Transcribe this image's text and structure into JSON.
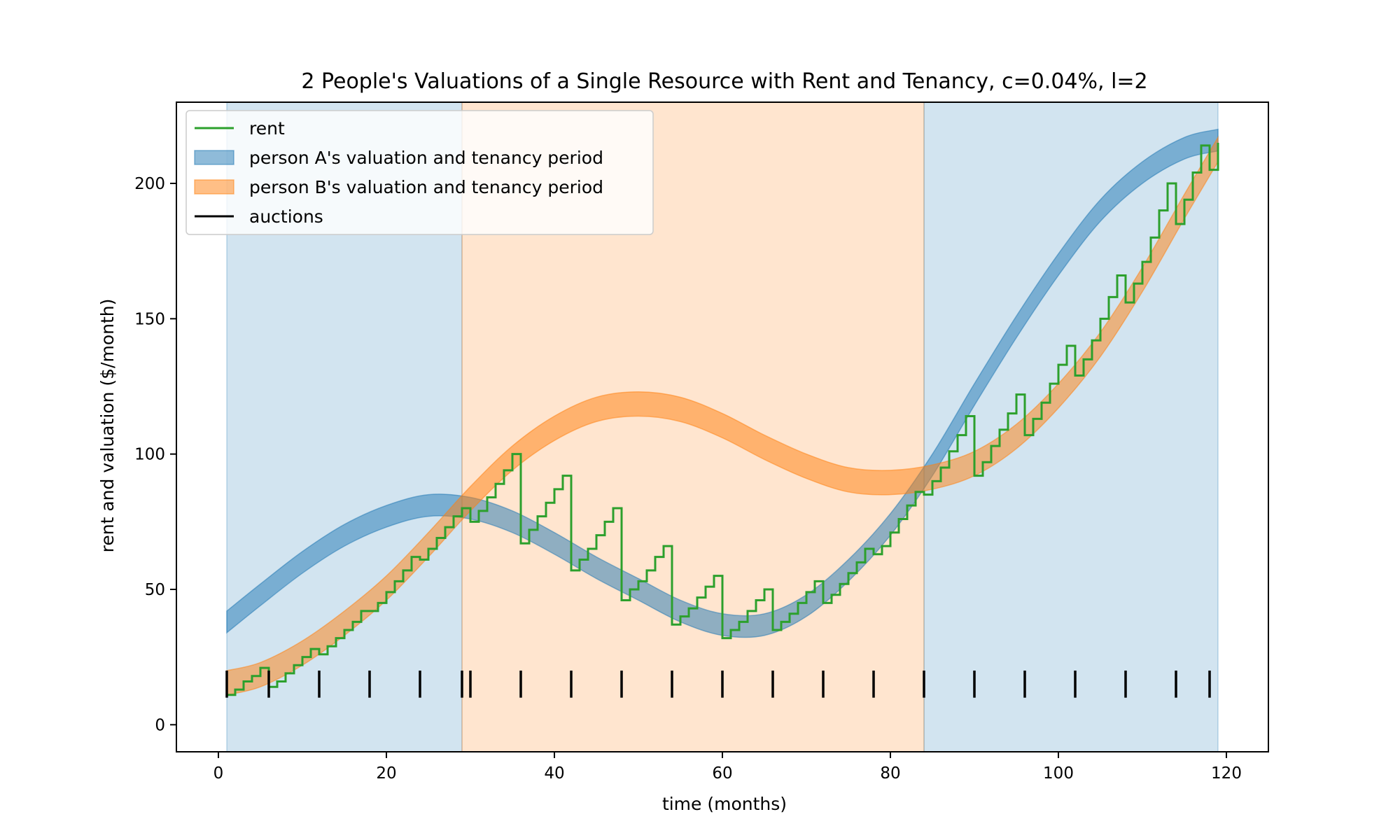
{
  "chart_data": {
    "type": "area",
    "title": "2 People's Valuations of a Single Resource with Rent and Tenancy, c=0.04%, l=2",
    "xlabel": "time (months)",
    "ylabel": "rent and valuation ($/month)",
    "xlim": [
      -5,
      125
    ],
    "ylim": [
      -10,
      230
    ],
    "x_ticks": [
      0,
      20,
      40,
      60,
      80,
      100,
      120
    ],
    "y_ticks": [
      0,
      50,
      100,
      150,
      200
    ],
    "grid": false,
    "legend_position": "upper-left",
    "colors": {
      "personA": "#1f77b4",
      "personB": "#ff7f0e",
      "rent": "#2ca02c",
      "auctions": "#000000"
    },
    "legend": [
      {
        "key": "rent",
        "label": "rent"
      },
      {
        "key": "personA",
        "label": "person A's valuation and tenancy period"
      },
      {
        "key": "personB",
        "label": "person B's valuation and tenancy period"
      },
      {
        "key": "auctions",
        "label": "auctions"
      }
    ],
    "tenancy_periods": [
      {
        "person": "A",
        "start": 1,
        "end": 29
      },
      {
        "person": "B",
        "start": 29,
        "end": 84
      },
      {
        "person": "A",
        "start": 84,
        "end": 119
      }
    ],
    "valuation_bands": {
      "A": {
        "x": [
          1,
          5,
          10,
          15,
          20,
          25,
          30,
          35,
          40,
          45,
          50,
          55,
          60,
          65,
          70,
          75,
          80,
          85,
          90,
          95,
          100,
          105,
          110,
          115,
          119
        ],
        "lower": [
          34,
          44,
          56,
          66,
          73,
          77,
          76,
          71,
          63,
          54,
          46,
          38,
          33,
          33,
          40,
          53,
          70,
          92,
          118,
          143,
          166,
          186,
          200,
          209,
          212
        ],
        "upper": [
          42,
          52,
          64,
          74,
          81,
          85,
          84,
          79,
          71,
          62,
          54,
          46,
          41,
          41,
          48,
          61,
          78,
          100,
          126,
          151,
          174,
          194,
          208,
          217,
          220
        ]
      },
      "B": {
        "x": [
          1,
          5,
          10,
          15,
          20,
          25,
          30,
          35,
          40,
          45,
          50,
          55,
          60,
          65,
          70,
          75,
          80,
          85,
          90,
          95,
          100,
          105,
          110,
          115,
          119
        ],
        "lower": [
          11,
          14,
          22,
          33,
          46,
          62,
          79,
          94,
          105,
          112,
          114,
          112,
          106,
          98,
          91,
          86,
          85,
          87,
          92,
          102,
          117,
          136,
          160,
          187,
          208
        ],
        "upper": [
          20,
          23,
          31,
          42,
          55,
          71,
          88,
          103,
          114,
          121,
          123,
          121,
          115,
          107,
          100,
          95,
          94,
          96,
          101,
          111,
          126,
          145,
          169,
          196,
          217
        ]
      }
    },
    "auctions": [
      1,
      6,
      12,
      18,
      24,
      29,
      30,
      36,
      42,
      48,
      54,
      60,
      66,
      72,
      78,
      84,
      90,
      96,
      102,
      108,
      114,
      118
    ],
    "auction_marker_range": [
      10,
      20
    ],
    "rent": [
      [
        1,
        11
      ],
      [
        2,
        13
      ],
      [
        3,
        16
      ],
      [
        4,
        18
      ],
      [
        5,
        21
      ],
      [
        6,
        14
      ],
      [
        7,
        16
      ],
      [
        8,
        19
      ],
      [
        9,
        22
      ],
      [
        10,
        25
      ],
      [
        11,
        28
      ],
      [
        12,
        26
      ],
      [
        13,
        29
      ],
      [
        14,
        32
      ],
      [
        15,
        35
      ],
      [
        16,
        38
      ],
      [
        17,
        42
      ],
      [
        18,
        42
      ],
      [
        19,
        45
      ],
      [
        20,
        49
      ],
      [
        21,
        53
      ],
      [
        22,
        57
      ],
      [
        23,
        62
      ],
      [
        24,
        61
      ],
      [
        25,
        65
      ],
      [
        26,
        69
      ],
      [
        27,
        73
      ],
      [
        28,
        77
      ],
      [
        29,
        80
      ],
      [
        30,
        75
      ],
      [
        31,
        79
      ],
      [
        32,
        84
      ],
      [
        33,
        89
      ],
      [
        34,
        94
      ],
      [
        35,
        100
      ],
      [
        36,
        67
      ],
      [
        37,
        72
      ],
      [
        38,
        77
      ],
      [
        39,
        82
      ],
      [
        40,
        87
      ],
      [
        41,
        92
      ],
      [
        42,
        57
      ],
      [
        43,
        61
      ],
      [
        44,
        65
      ],
      [
        45,
        70
      ],
      [
        46,
        75
      ],
      [
        47,
        80
      ],
      [
        48,
        46
      ],
      [
        49,
        50
      ],
      [
        50,
        53
      ],
      [
        51,
        57
      ],
      [
        52,
        62
      ],
      [
        53,
        66
      ],
      [
        54,
        37
      ],
      [
        55,
        40
      ],
      [
        56,
        43
      ],
      [
        57,
        47
      ],
      [
        58,
        51
      ],
      [
        59,
        55
      ],
      [
        60,
        32
      ],
      [
        61,
        35
      ],
      [
        62,
        38
      ],
      [
        63,
        42
      ],
      [
        64,
        46
      ],
      [
        65,
        50
      ],
      [
        66,
        35
      ],
      [
        67,
        38
      ],
      [
        68,
        41
      ],
      [
        69,
        45
      ],
      [
        70,
        49
      ],
      [
        71,
        53
      ],
      [
        72,
        45
      ],
      [
        73,
        48
      ],
      [
        74,
        52
      ],
      [
        75,
        56
      ],
      [
        76,
        60
      ],
      [
        77,
        65
      ],
      [
        78,
        63
      ],
      [
        79,
        66
      ],
      [
        80,
        71
      ],
      [
        81,
        76
      ],
      [
        82,
        81
      ],
      [
        83,
        86
      ],
      [
        84,
        85
      ],
      [
        85,
        90
      ],
      [
        86,
        95
      ],
      [
        87,
        101
      ],
      [
        88,
        107
      ],
      [
        89,
        114
      ],
      [
        90,
        92
      ],
      [
        91,
        97
      ],
      [
        92,
        103
      ],
      [
        93,
        109
      ],
      [
        94,
        115
      ],
      [
        95,
        122
      ],
      [
        96,
        107
      ],
      [
        97,
        113
      ],
      [
        98,
        119
      ],
      [
        99,
        126
      ],
      [
        100,
        133
      ],
      [
        101,
        140
      ],
      [
        102,
        129
      ],
      [
        103,
        135
      ],
      [
        104,
        142
      ],
      [
        105,
        150
      ],
      [
        106,
        158
      ],
      [
        107,
        166
      ],
      [
        108,
        156
      ],
      [
        109,
        163
      ],
      [
        110,
        171
      ],
      [
        111,
        180
      ],
      [
        112,
        190
      ],
      [
        113,
        200
      ],
      [
        114,
        185
      ],
      [
        115,
        194
      ],
      [
        116,
        204
      ],
      [
        117,
        214
      ],
      [
        118,
        205
      ],
      [
        119,
        215
      ]
    ]
  }
}
